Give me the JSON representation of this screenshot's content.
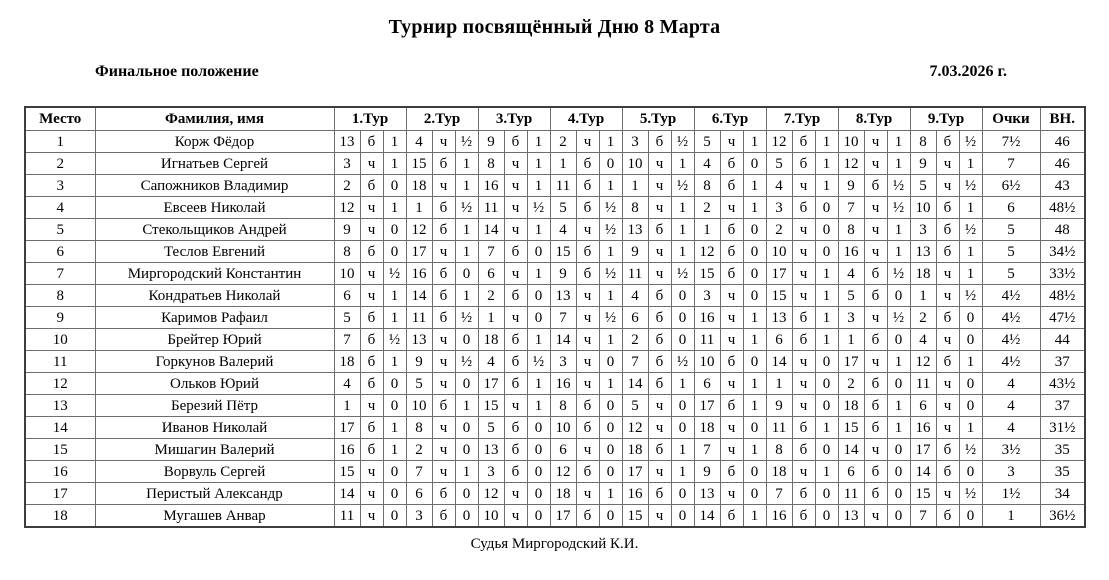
{
  "page": {
    "title": "Турнир посвящённый Дню 8 Марта",
    "status_label": "Финальное положение",
    "date": "7.03.2026 г.",
    "footer": "Судья Миргородский К.И."
  },
  "table": {
    "headers": {
      "place": "Место",
      "name": "Фамилия, имя",
      "rounds": [
        "1.Тур",
        "2.Тур",
        "3.Тур",
        "4.Тур",
        "5.Тур",
        "6.Тур",
        "7.Тур",
        "8.Тур",
        "9.Тур"
      ],
      "points": "Очки",
      "buchholz": "ВН."
    },
    "rows": [
      {
        "place": "1",
        "name": "Корж Фёдор",
        "rounds": [
          [
            "13",
            "б",
            "1"
          ],
          [
            "4",
            "ч",
            "½"
          ],
          [
            "9",
            "б",
            "1"
          ],
          [
            "2",
            "ч",
            "1"
          ],
          [
            "3",
            "б",
            "½"
          ],
          [
            "5",
            "ч",
            "1"
          ],
          [
            "12",
            "б",
            "1"
          ],
          [
            "10",
            "ч",
            "1"
          ],
          [
            "8",
            "б",
            "½"
          ]
        ],
        "points": "7½",
        "bh": "46"
      },
      {
        "place": "2",
        "name": "Игнатьев Сергей",
        "rounds": [
          [
            "3",
            "ч",
            "1"
          ],
          [
            "15",
            "б",
            "1"
          ],
          [
            "8",
            "ч",
            "1"
          ],
          [
            "1",
            "б",
            "0"
          ],
          [
            "10",
            "ч",
            "1"
          ],
          [
            "4",
            "б",
            "0"
          ],
          [
            "5",
            "б",
            "1"
          ],
          [
            "12",
            "ч",
            "1"
          ],
          [
            "9",
            "ч",
            "1"
          ]
        ],
        "points": "7",
        "bh": "46"
      },
      {
        "place": "3",
        "name": "Сапожников Владимир",
        "rounds": [
          [
            "2",
            "б",
            "0"
          ],
          [
            "18",
            "ч",
            "1"
          ],
          [
            "16",
            "ч",
            "1"
          ],
          [
            "11",
            "б",
            "1"
          ],
          [
            "1",
            "ч",
            "½"
          ],
          [
            "8",
            "б",
            "1"
          ],
          [
            "4",
            "ч",
            "1"
          ],
          [
            "9",
            "б",
            "½"
          ],
          [
            "5",
            "ч",
            "½"
          ]
        ],
        "points": "6½",
        "bh": "43"
      },
      {
        "place": "4",
        "name": "Евсеев Николай",
        "rounds": [
          [
            "12",
            "ч",
            "1"
          ],
          [
            "1",
            "б",
            "½"
          ],
          [
            "11",
            "ч",
            "½"
          ],
          [
            "5",
            "б",
            "½"
          ],
          [
            "8",
            "ч",
            "1"
          ],
          [
            "2",
            "ч",
            "1"
          ],
          [
            "3",
            "б",
            "0"
          ],
          [
            "7",
            "ч",
            "½"
          ],
          [
            "10",
            "б",
            "1"
          ]
        ],
        "points": "6",
        "bh": "48½"
      },
      {
        "place": "5",
        "name": "Стекольщиков Андрей",
        "rounds": [
          [
            "9",
            "ч",
            "0"
          ],
          [
            "12",
            "б",
            "1"
          ],
          [
            "14",
            "ч",
            "1"
          ],
          [
            "4",
            "ч",
            "½"
          ],
          [
            "13",
            "б",
            "1"
          ],
          [
            "1",
            "б",
            "0"
          ],
          [
            "2",
            "ч",
            "0"
          ],
          [
            "8",
            "ч",
            "1"
          ],
          [
            "3",
            "б",
            "½"
          ]
        ],
        "points": "5",
        "bh": "48"
      },
      {
        "place": "6",
        "name": "Теслов Евгений",
        "rounds": [
          [
            "8",
            "б",
            "0"
          ],
          [
            "17",
            "ч",
            "1"
          ],
          [
            "7",
            "б",
            "0"
          ],
          [
            "15",
            "б",
            "1"
          ],
          [
            "9",
            "ч",
            "1"
          ],
          [
            "12",
            "б",
            "0"
          ],
          [
            "10",
            "ч",
            "0"
          ],
          [
            "16",
            "ч",
            "1"
          ],
          [
            "13",
            "б",
            "1"
          ]
        ],
        "points": "5",
        "bh": "34½"
      },
      {
        "place": "7",
        "name": "Миргородский Константин",
        "rounds": [
          [
            "10",
            "ч",
            "½"
          ],
          [
            "16",
            "б",
            "0"
          ],
          [
            "6",
            "ч",
            "1"
          ],
          [
            "9",
            "б",
            "½"
          ],
          [
            "11",
            "ч",
            "½"
          ],
          [
            "15",
            "б",
            "0"
          ],
          [
            "17",
            "ч",
            "1"
          ],
          [
            "4",
            "б",
            "½"
          ],
          [
            "18",
            "ч",
            "1"
          ]
        ],
        "points": "5",
        "bh": "33½"
      },
      {
        "place": "8",
        "name": "Кондратьев Николай",
        "rounds": [
          [
            "6",
            "ч",
            "1"
          ],
          [
            "14",
            "б",
            "1"
          ],
          [
            "2",
            "б",
            "0"
          ],
          [
            "13",
            "ч",
            "1"
          ],
          [
            "4",
            "б",
            "0"
          ],
          [
            "3",
            "ч",
            "0"
          ],
          [
            "15",
            "ч",
            "1"
          ],
          [
            "5",
            "б",
            "0"
          ],
          [
            "1",
            "ч",
            "½"
          ]
        ],
        "points": "4½",
        "bh": "48½"
      },
      {
        "place": "9",
        "name": "Каримов Рафаил",
        "rounds": [
          [
            "5",
            "б",
            "1"
          ],
          [
            "11",
            "б",
            "½"
          ],
          [
            "1",
            "ч",
            "0"
          ],
          [
            "7",
            "ч",
            "½"
          ],
          [
            "6",
            "б",
            "0"
          ],
          [
            "16",
            "ч",
            "1"
          ],
          [
            "13",
            "б",
            "1"
          ],
          [
            "3",
            "ч",
            "½"
          ],
          [
            "2",
            "б",
            "0"
          ]
        ],
        "points": "4½",
        "bh": "47½"
      },
      {
        "place": "10",
        "name": "Брейтер Юрий",
        "rounds": [
          [
            "7",
            "б",
            "½"
          ],
          [
            "13",
            "ч",
            "0"
          ],
          [
            "18",
            "б",
            "1"
          ],
          [
            "14",
            "ч",
            "1"
          ],
          [
            "2",
            "б",
            "0"
          ],
          [
            "11",
            "ч",
            "1"
          ],
          [
            "6",
            "б",
            "1"
          ],
          [
            "1",
            "б",
            "0"
          ],
          [
            "4",
            "ч",
            "0"
          ]
        ],
        "points": "4½",
        "bh": "44"
      },
      {
        "place": "11",
        "name": "Горкунов Валерий",
        "rounds": [
          [
            "18",
            "б",
            "1"
          ],
          [
            "9",
            "ч",
            "½"
          ],
          [
            "4",
            "б",
            "½"
          ],
          [
            "3",
            "ч",
            "0"
          ],
          [
            "7",
            "б",
            "½"
          ],
          [
            "10",
            "б",
            "0"
          ],
          [
            "14",
            "ч",
            "0"
          ],
          [
            "17",
            "ч",
            "1"
          ],
          [
            "12",
            "б",
            "1"
          ]
        ],
        "points": "4½",
        "bh": "37"
      },
      {
        "place": "12",
        "name": "Ольков Юрий",
        "rounds": [
          [
            "4",
            "б",
            "0"
          ],
          [
            "5",
            "ч",
            "0"
          ],
          [
            "17",
            "б",
            "1"
          ],
          [
            "16",
            "ч",
            "1"
          ],
          [
            "14",
            "б",
            "1"
          ],
          [
            "6",
            "ч",
            "1"
          ],
          [
            "1",
            "ч",
            "0"
          ],
          [
            "2",
            "б",
            "0"
          ],
          [
            "11",
            "ч",
            "0"
          ]
        ],
        "points": "4",
        "bh": "43½"
      },
      {
        "place": "13",
        "name": "Березий Пётр",
        "rounds": [
          [
            "1",
            "ч",
            "0"
          ],
          [
            "10",
            "б",
            "1"
          ],
          [
            "15",
            "ч",
            "1"
          ],
          [
            "8",
            "б",
            "0"
          ],
          [
            "5",
            "ч",
            "0"
          ],
          [
            "17",
            "б",
            "1"
          ],
          [
            "9",
            "ч",
            "0"
          ],
          [
            "18",
            "б",
            "1"
          ],
          [
            "6",
            "ч",
            "0"
          ]
        ],
        "points": "4",
        "bh": "37"
      },
      {
        "place": "14",
        "name": "Иванов Николай",
        "rounds": [
          [
            "17",
            "б",
            "1"
          ],
          [
            "8",
            "ч",
            "0"
          ],
          [
            "5",
            "б",
            "0"
          ],
          [
            "10",
            "б",
            "0"
          ],
          [
            "12",
            "ч",
            "0"
          ],
          [
            "18",
            "ч",
            "0"
          ],
          [
            "11",
            "б",
            "1"
          ],
          [
            "15",
            "б",
            "1"
          ],
          [
            "16",
            "ч",
            "1"
          ]
        ],
        "points": "4",
        "bh": "31½"
      },
      {
        "place": "15",
        "name": "Мишагин Валерий",
        "rounds": [
          [
            "16",
            "б",
            "1"
          ],
          [
            "2",
            "ч",
            "0"
          ],
          [
            "13",
            "б",
            "0"
          ],
          [
            "6",
            "ч",
            "0"
          ],
          [
            "18",
            "б",
            "1"
          ],
          [
            "7",
            "ч",
            "1"
          ],
          [
            "8",
            "б",
            "0"
          ],
          [
            "14",
            "ч",
            "0"
          ],
          [
            "17",
            "б",
            "½"
          ]
        ],
        "points": "3½",
        "bh": "35"
      },
      {
        "place": "16",
        "name": "Ворвуль Сергей",
        "rounds": [
          [
            "15",
            "ч",
            "0"
          ],
          [
            "7",
            "ч",
            "1"
          ],
          [
            "3",
            "б",
            "0"
          ],
          [
            "12",
            "б",
            "0"
          ],
          [
            "17",
            "ч",
            "1"
          ],
          [
            "9",
            "б",
            "0"
          ],
          [
            "18",
            "ч",
            "1"
          ],
          [
            "6",
            "б",
            "0"
          ],
          [
            "14",
            "б",
            "0"
          ]
        ],
        "points": "3",
        "bh": "35"
      },
      {
        "place": "17",
        "name": "Перистый Александр",
        "rounds": [
          [
            "14",
            "ч",
            "0"
          ],
          [
            "6",
            "б",
            "0"
          ],
          [
            "12",
            "ч",
            "0"
          ],
          [
            "18",
            "ч",
            "1"
          ],
          [
            "16",
            "б",
            "0"
          ],
          [
            "13",
            "ч",
            "0"
          ],
          [
            "7",
            "б",
            "0"
          ],
          [
            "11",
            "б",
            "0"
          ],
          [
            "15",
            "ч",
            "½"
          ]
        ],
        "points": "1½",
        "bh": "34"
      },
      {
        "place": "18",
        "name": "Мугашев Анвар",
        "rounds": [
          [
            "11",
            "ч",
            "0"
          ],
          [
            "3",
            "б",
            "0"
          ],
          [
            "10",
            "ч",
            "0"
          ],
          [
            "17",
            "б",
            "0"
          ],
          [
            "15",
            "ч",
            "0"
          ],
          [
            "14",
            "б",
            "1"
          ],
          [
            "16",
            "б",
            "0"
          ],
          [
            "13",
            "ч",
            "0"
          ],
          [
            "7",
            "б",
            "0"
          ]
        ],
        "points": "1",
        "bh": "36½"
      }
    ]
  }
}
